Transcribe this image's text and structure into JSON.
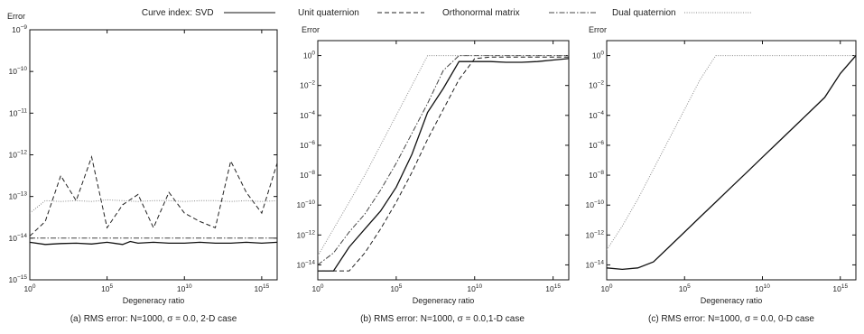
{
  "legend": {
    "prefix": "Curve index:",
    "entries": [
      {
        "label": "SVD",
        "style": "solid"
      },
      {
        "label": "Unit quaternion",
        "style": "dashed"
      },
      {
        "label": "Orthonormal matrix",
        "style": "dashdot"
      },
      {
        "label": "Dual quaternion",
        "style": "dotted"
      }
    ]
  },
  "chart_data": [
    {
      "type": "line",
      "caption": "(a) RMS error: N=1000, σ = 0.0, 2-D case",
      "ylabel": "Error",
      "xlabel": "Degeneracy ratio",
      "xscale": "log",
      "yscale": "log",
      "xlim": [
        0,
        16
      ],
      "ylim": [
        -15,
        -9
      ],
      "x_tick_exponents": [
        0,
        5,
        10,
        15
      ],
      "y_tick_exponents": [
        -15,
        -14,
        -13,
        -12,
        -11,
        -10,
        -9
      ],
      "series": [
        {
          "name": "SVD",
          "style": "solid",
          "x_exp": [
            0,
            1,
            2,
            3,
            4,
            5,
            6,
            6.5,
            7,
            8,
            9,
            10,
            11,
            12,
            13,
            14,
            15,
            16
          ],
          "y_exp": [
            -14.1,
            -14.15,
            -14.13,
            -14.12,
            -14.14,
            -14.1,
            -14.15,
            -14.08,
            -14.12,
            -14.1,
            -14.12,
            -14.12,
            -14.1,
            -14.12,
            -14.12,
            -14.1,
            -14.12,
            -14.1
          ]
        },
        {
          "name": "Unit quaternion",
          "style": "dashed",
          "x_exp": [
            0,
            1,
            2,
            3,
            4,
            5,
            6,
            7,
            8,
            9,
            10,
            11,
            12,
            13,
            14,
            15,
            16
          ],
          "y_exp": [
            -13.95,
            -13.6,
            -12.5,
            -13.1,
            -12.05,
            -13.75,
            -13.2,
            -12.95,
            -13.75,
            -12.9,
            -13.4,
            -13.6,
            -13.75,
            -12.15,
            -12.9,
            -13.4,
            -12.2
          ]
        },
        {
          "name": "Orthonormal matrix",
          "style": "dashdot",
          "x_exp": [
            0,
            16
          ],
          "y_exp": [
            -14.0,
            -14.0
          ]
        },
        {
          "name": "Dual quaternion",
          "style": "dotted",
          "x_exp": [
            0,
            1,
            2,
            3,
            4,
            5,
            6,
            7,
            8,
            9,
            10,
            11,
            12,
            13,
            14,
            15,
            16
          ],
          "y_exp": [
            -13.4,
            -13.1,
            -13.12,
            -13.1,
            -13.12,
            -13.08,
            -13.1,
            -13.12,
            -13.1,
            -13.1,
            -13.12,
            -13.1,
            -13.1,
            -13.12,
            -13.1,
            -13.12,
            -13.1
          ]
        }
      ]
    },
    {
      "type": "line",
      "caption": "(b) RMS error: N=1000, σ = 0.0,1-D case",
      "ylabel": "Error",
      "xlabel": "Degeneracy ratio",
      "xscale": "log",
      "yscale": "log",
      "xlim": [
        0,
        16
      ],
      "ylim": [
        -15,
        1
      ],
      "x_tick_exponents": [
        0,
        5,
        10,
        15
      ],
      "y_tick_exponents": [
        -14,
        -12,
        -10,
        -8,
        -6,
        -4,
        -2,
        0
      ],
      "series": [
        {
          "name": "SVD",
          "style": "solid",
          "x_exp": [
            0,
            1,
            2,
            3,
            4,
            5,
            6,
            7,
            8,
            9,
            10,
            11,
            12,
            13,
            14,
            15,
            16
          ],
          "y_exp": [
            -14.4,
            -14.4,
            -12.8,
            -11.6,
            -10.4,
            -8.8,
            -6.6,
            -3.8,
            -2.2,
            -0.4,
            -0.4,
            -0.4,
            -0.45,
            -0.45,
            -0.4,
            -0.3,
            -0.2
          ]
        },
        {
          "name": "Unit quaternion",
          "style": "dashed",
          "x_exp": [
            0,
            1,
            2,
            3,
            4,
            5,
            6,
            7,
            8,
            9,
            10,
            11,
            12,
            13,
            14,
            15,
            16
          ],
          "y_exp": [
            -14.4,
            -14.4,
            -14.4,
            -13.2,
            -11.6,
            -9.8,
            -7.8,
            -5.6,
            -3.6,
            -1.6,
            -0.2,
            -0.1,
            -0.1,
            -0.1,
            -0.1,
            -0.1,
            -0.1
          ]
        },
        {
          "name": "Orthonormal matrix",
          "style": "dashdot",
          "x_exp": [
            0,
            1,
            2,
            3,
            4,
            5,
            6,
            7,
            8,
            9,
            10,
            11,
            12,
            13,
            14,
            15,
            16
          ],
          "y_exp": [
            -14.0,
            -13.2,
            -11.8,
            -10.6,
            -9.0,
            -7.2,
            -5.2,
            -3.2,
            -1.0,
            0,
            0,
            0,
            0,
            0,
            0,
            0,
            0
          ]
        },
        {
          "name": "Dual quaternion",
          "style": "dotted",
          "x_exp": [
            0,
            1,
            2,
            3,
            4,
            5,
            6,
            7,
            8,
            9,
            10,
            11,
            12,
            13,
            14,
            15,
            16
          ],
          "y_exp": [
            -13.4,
            -11.6,
            -9.8,
            -8.0,
            -6.0,
            -4.0,
            -2.0,
            0,
            0,
            0,
            0,
            0,
            0,
            0,
            0,
            0,
            0
          ]
        }
      ]
    },
    {
      "type": "line",
      "caption": "(c) RMS error: N=1000, σ = 0.0, 0-D case",
      "ylabel": "Error",
      "xlabel": "Degeneracy ratio",
      "xscale": "log",
      "yscale": "log",
      "xlim": [
        0,
        16
      ],
      "ylim": [
        -15,
        1
      ],
      "x_tick_exponents": [
        0,
        5,
        10,
        15
      ],
      "y_tick_exponents": [
        -14,
        -12,
        -10,
        -8,
        -6,
        -4,
        -2,
        0
      ],
      "series": [
        {
          "name": "SVD",
          "style": "solid",
          "x_exp": [
            0,
            1,
            2,
            3,
            4,
            5,
            6,
            7,
            8,
            9,
            10,
            11,
            12,
            13,
            14,
            15,
            16
          ],
          "y_exp": [
            -14.2,
            -14.3,
            -14.2,
            -13.8,
            -12.8,
            -11.8,
            -10.8,
            -9.8,
            -8.8,
            -7.8,
            -6.8,
            -5.8,
            -4.8,
            -3.8,
            -2.8,
            -1.2,
            0.0
          ]
        },
        {
          "name": "Dual quaternion",
          "style": "dotted",
          "x_exp": [
            0,
            1,
            2,
            3,
            4,
            5,
            6,
            7,
            8,
            9,
            10,
            11,
            12,
            13,
            14,
            15,
            16
          ],
          "y_exp": [
            -13.0,
            -11.4,
            -9.6,
            -7.6,
            -5.6,
            -3.6,
            -1.6,
            0,
            0,
            0,
            0,
            0,
            0,
            0,
            0,
            0,
            0
          ]
        }
      ]
    }
  ]
}
